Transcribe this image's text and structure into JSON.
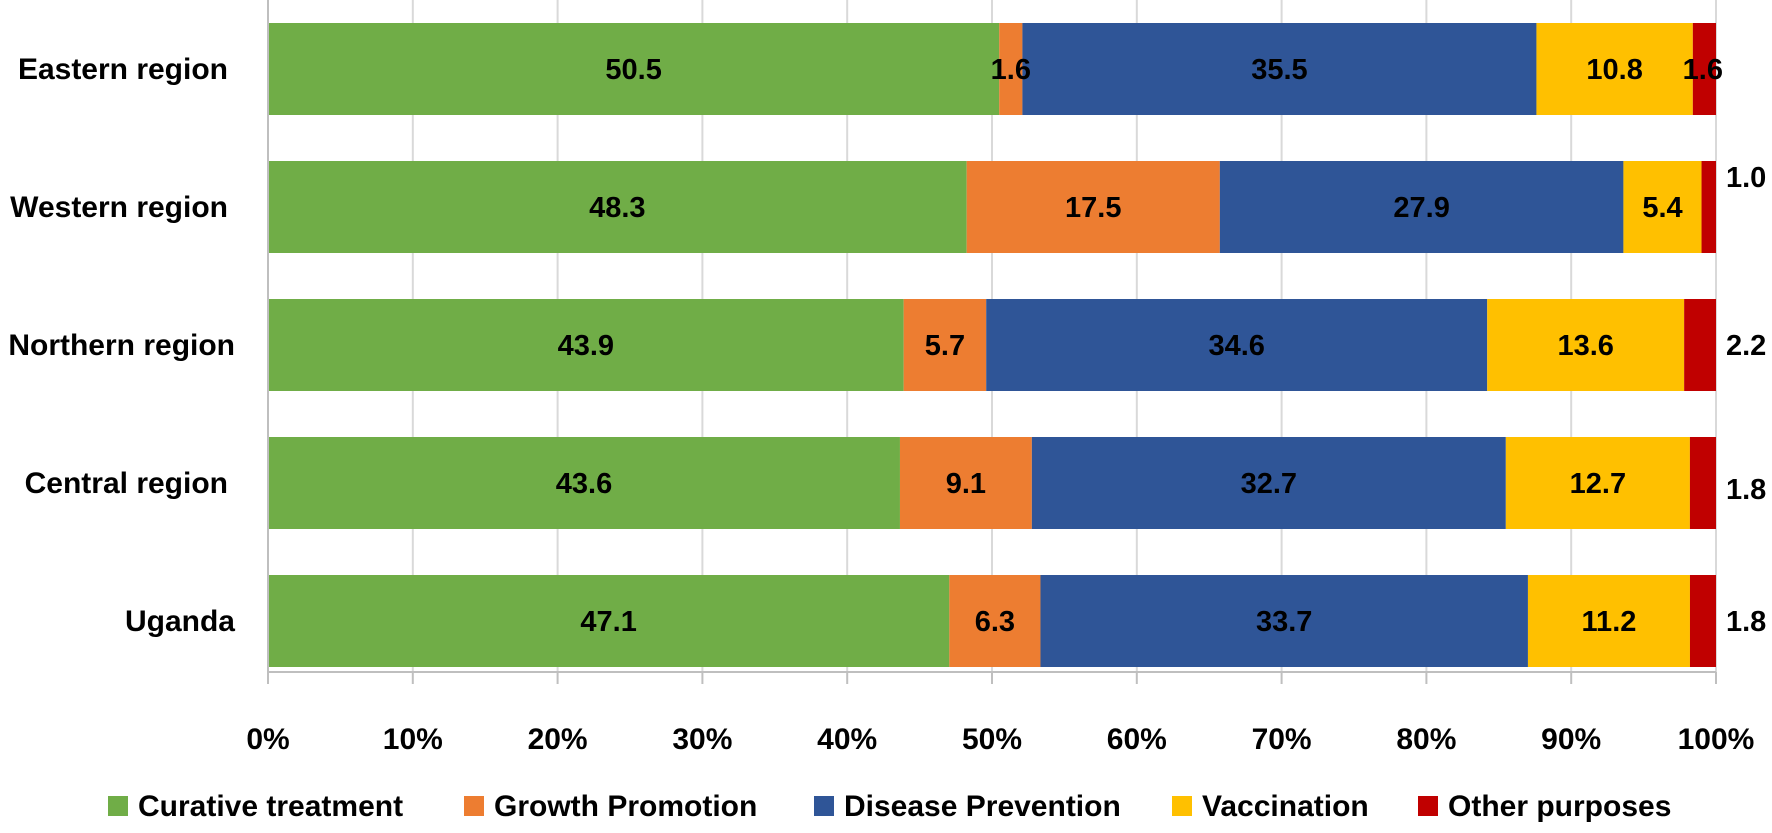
{
  "chart_data": {
    "type": "bar",
    "orientation": "horizontal",
    "stacked": "percent",
    "categories": [
      "Eastern region",
      "Western region",
      "Northern region",
      "Central region",
      "Uganda"
    ],
    "series": [
      {
        "name": "Curative treatment",
        "color": "#70AD47",
        "values": [
          50.5,
          48.3,
          43.9,
          43.6,
          47.1
        ]
      },
      {
        "name": "Growth Promotion",
        "color": "#ED7D31",
        "values": [
          1.6,
          17.5,
          5.7,
          9.1,
          6.3
        ]
      },
      {
        "name": "Disease Prevention",
        "color": "#2F5597",
        "values": [
          35.5,
          27.9,
          34.6,
          32.7,
          33.7
        ]
      },
      {
        "name": "Vaccination",
        "color": "#FFC000",
        "values": [
          10.8,
          5.4,
          13.6,
          12.7,
          11.2
        ]
      },
      {
        "name": "Other purposes",
        "color": "#C00000",
        "values": [
          1.6,
          1.0,
          2.2,
          1.8,
          1.8
        ]
      }
    ],
    "xlim": [
      0,
      100
    ],
    "x_ticks": [
      "0%",
      "10%",
      "20%",
      "30%",
      "40%",
      "50%",
      "60%",
      "70%",
      "80%",
      "90%",
      "100%"
    ],
    "grid": true,
    "legend_position": "bottom",
    "title": "",
    "xlabel": "",
    "ylabel": ""
  }
}
